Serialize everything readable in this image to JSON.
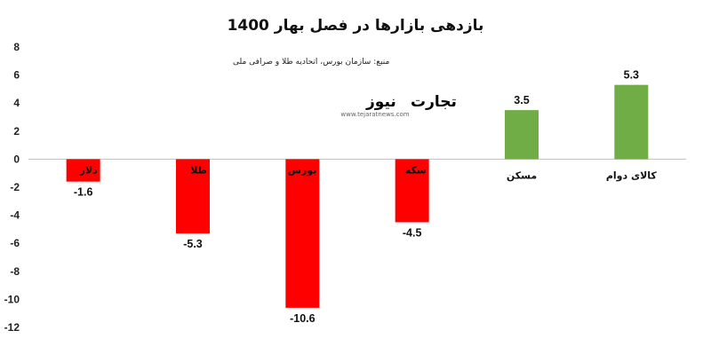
{
  "chart_data": {
    "type": "bar",
    "title": "بازدهی بازارها در فصل بهار 1400",
    "source_note": "منبع: سازمان بورس، اتحادیه طلا و صرافی ملی",
    "categories": [
      "دلار",
      "طلا",
      "بورس",
      "سکه",
      "مسکن",
      "کالای دوام"
    ],
    "values": [
      -1.6,
      -5.3,
      -10.6,
      -4.5,
      3.5,
      5.3
    ],
    "value_labels": [
      "-1.6",
      "-5.3",
      "-10.6",
      "-4.5",
      "3.5",
      "5.3"
    ],
    "ylim": [
      -12,
      8
    ],
    "yticks": [
      8,
      6,
      4,
      2,
      0,
      -2,
      -4,
      -6,
      -8,
      -10,
      -12
    ],
    "grid": false,
    "colors": {
      "positive": "#70ad47",
      "negative": "#ff0000"
    }
  },
  "logo": {
    "brand_part1": "تجارت",
    "brand_part2": "نیوز",
    "site": "www.tejaratnews.com",
    "color1": "#1f3864",
    "color2": "#d6001c"
  }
}
